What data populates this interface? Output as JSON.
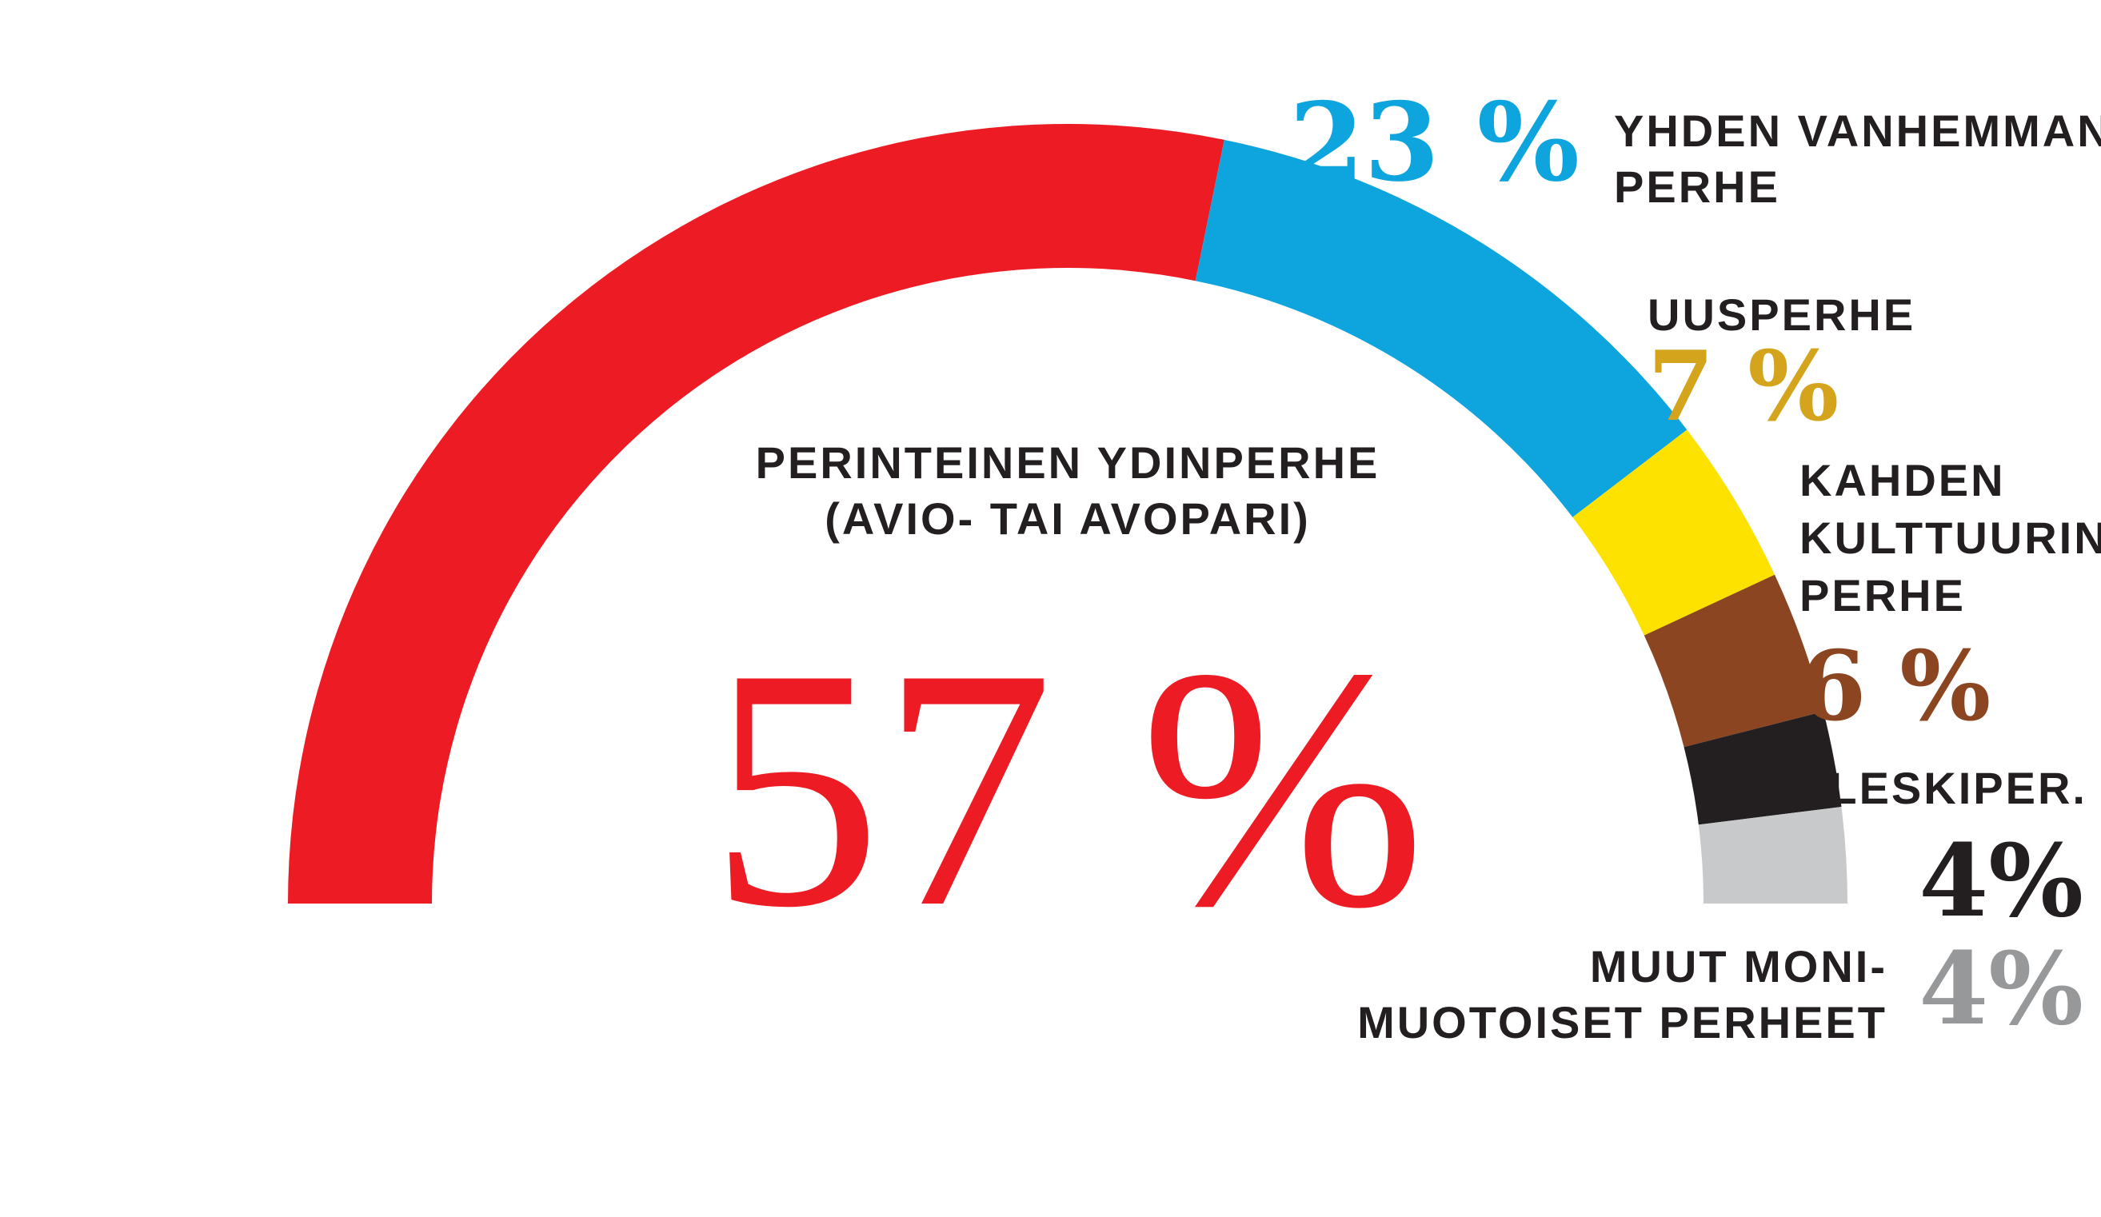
{
  "chart_data": {
    "type": "pie",
    "style": "half-donut",
    "colors": [
      "#ed1c24",
      "#0ea5de",
      "#fde200",
      "#8b4520",
      "#231f20",
      "#c8c9ca"
    ],
    "value_colors": [
      "#ed1c24",
      "#0ea5de",
      "#d4a41c",
      "#8b4520",
      "#231f20",
      "#97989a"
    ],
    "segments": [
      {
        "label_lines": [
          "PERINTEINEN YDINPERHE",
          "(AVIO- TAI AVOPARI)"
        ],
        "value": 57,
        "value_label": "57 %"
      },
      {
        "label_lines": [
          "YHDEN VANHEMMAN",
          "PERHE"
        ],
        "value": 23,
        "value_label": "23 %"
      },
      {
        "label_lines": [
          "UUSPERHE"
        ],
        "value": 7,
        "value_label": "7 %"
      },
      {
        "label_lines": [
          "KAHDEN",
          "KULTTUURIN",
          "PERHE"
        ],
        "value": 6,
        "value_label": "6 %"
      },
      {
        "label_lines": [
          "LESKIPER."
        ],
        "value": 4,
        "value_label": "4%"
      },
      {
        "label_lines": [
          "MUUT MONI-",
          "MUOTOISET PERHEET"
        ],
        "value": 4,
        "value_label": "4%"
      }
    ]
  }
}
